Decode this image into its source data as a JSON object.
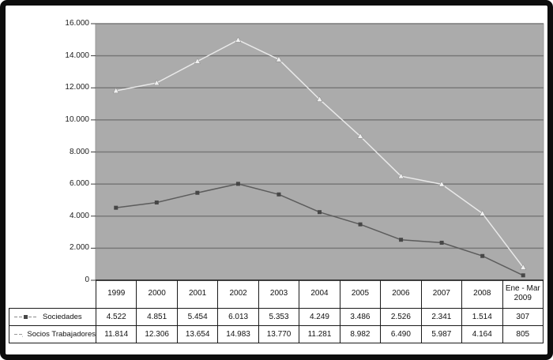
{
  "frame": {
    "border_color": "#0d0d0d",
    "background": "#ffffff"
  },
  "chart_data": {
    "type": "line",
    "title": "",
    "xlabel": "",
    "ylabel": "",
    "categories": [
      "1999",
      "2000",
      "2001",
      "2002",
      "2003",
      "2004",
      "2005",
      "2006",
      "2007",
      "2008",
      "Ene - Mar 2009"
    ],
    "series": [
      {
        "name": "Sociedades",
        "marker": "square",
        "line_color": "#5c5c5c",
        "marker_color": "#474747",
        "values": [
          "4.522",
          "4.851",
          "5.454",
          "6.013",
          "5.353",
          "4.249",
          "3.486",
          "2.526",
          "2.341",
          "1.514",
          "307"
        ]
      },
      {
        "name": "Socios Trabajadores",
        "marker": "triangle",
        "line_color": "#e9e9e9",
        "marker_color": "#f0f0f0",
        "values": [
          "11.814",
          "12.306",
          "13.654",
          "14.983",
          "13.770",
          "11.281",
          "8.982",
          "6.490",
          "5.987",
          "4.164",
          "805"
        ]
      }
    ],
    "ylim": [
      0,
      16000
    ],
    "ytick_labels": [
      "0",
      "2.000",
      "4.000",
      "6.000",
      "8.000",
      "10.000",
      "12.000",
      "14.000",
      "16.000"
    ],
    "grid": "horizontal",
    "legend_position": "table-left",
    "plot_background": "#ababab",
    "gridline_color": "#787878",
    "axis_color": "#3c3c3c"
  }
}
